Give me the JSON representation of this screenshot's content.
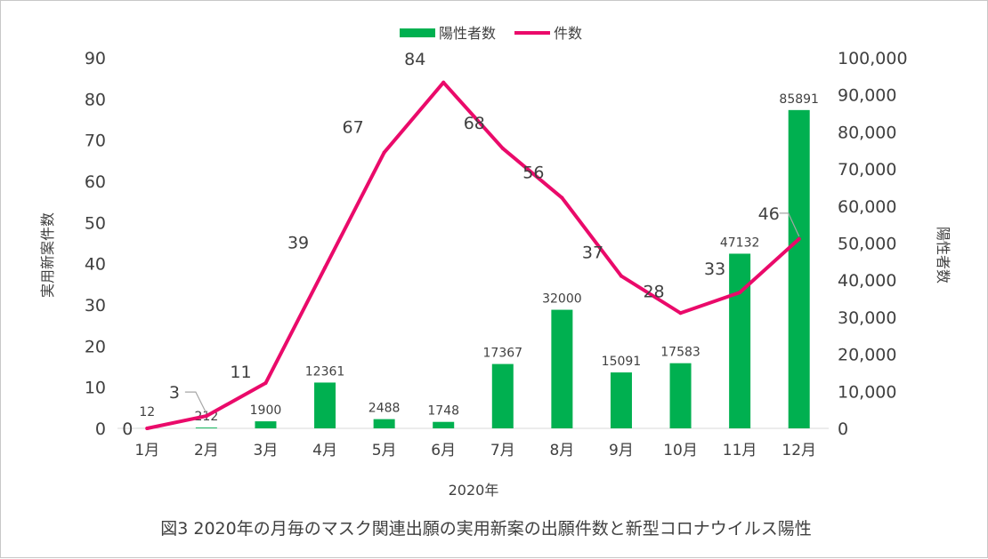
{
  "chart_data": {
    "type": "bar+line",
    "caption": "図3  2020年の月毎のマスク関連出願の実用新案の出願件数と新型コロナウイルス陽性",
    "categories": [
      "1月",
      "2月",
      "3月",
      "4月",
      "5月",
      "6月",
      "7月",
      "8月",
      "9月",
      "10月",
      "11月",
      "12月"
    ],
    "xlabel": "2020年",
    "ylabel_left": "実用新案件数",
    "ylabel_right": "陽性者数",
    "ylim_left": [
      0,
      90
    ],
    "yticks_left": [
      "0",
      "10",
      "20",
      "30",
      "40",
      "50",
      "60",
      "70",
      "80",
      "90"
    ],
    "ylim_right": [
      0,
      100000
    ],
    "yticks_right": [
      "0",
      "10,000",
      "20,000",
      "30,000",
      "40,000",
      "50,000",
      "60,000",
      "70,000",
      "80,000",
      "90,000",
      "100,000"
    ],
    "legend_position": "top",
    "series": [
      {
        "name": "陽性者数",
        "type": "bar",
        "axis": "right",
        "color": "#00b050",
        "values": [
          12,
          212,
          1900,
          12361,
          2488,
          1748,
          17367,
          32000,
          15091,
          17583,
          47132,
          85891
        ],
        "labels": [
          "12",
          "212",
          "1900",
          "12361",
          "2488",
          "1748",
          "17367",
          "32000",
          "15091",
          "17583",
          "47132",
          "85891"
        ]
      },
      {
        "name": "件数",
        "type": "line",
        "axis": "left",
        "color": "#ea0a6a",
        "values": [
          0,
          3,
          11,
          39,
          67,
          84,
          68,
          56,
          37,
          28,
          33,
          46
        ],
        "labels": [
          "0",
          "3",
          "11",
          "39",
          "67",
          "84",
          "68",
          "56",
          "37",
          "28",
          "33",
          "46"
        ]
      }
    ],
    "grid": false
  }
}
